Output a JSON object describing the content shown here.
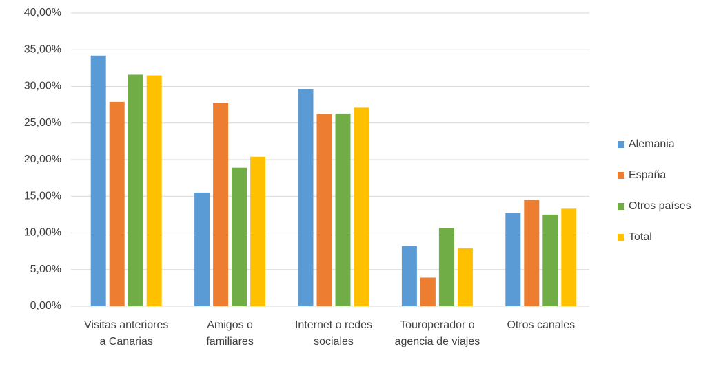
{
  "chart_data": {
    "type": "bar",
    "categories": [
      "Visitas anteriores a Canarias",
      "Amigos o familiares",
      "Internet o redes sociales",
      "Touroperador o agencia de viajes",
      "Otros canales"
    ],
    "series": [
      {
        "name": "Alemania",
        "color": "#5b9bd5",
        "values": [
          34.2,
          15.5,
          29.6,
          8.2,
          12.7
        ]
      },
      {
        "name": "España",
        "color": "#ed7d31",
        "values": [
          27.9,
          27.7,
          26.2,
          3.9,
          14.5
        ]
      },
      {
        "name": "Otros países",
        "color": "#70ad47",
        "values": [
          31.6,
          18.9,
          26.3,
          10.7,
          12.5
        ]
      },
      {
        "name": "Total",
        "color": "#ffc000",
        "values": [
          31.5,
          20.4,
          27.1,
          7.9,
          13.3
        ]
      }
    ],
    "ylim": [
      0,
      40
    ],
    "yticks": [
      {
        "value": 0,
        "label": "0,00%"
      },
      {
        "value": 5,
        "label": "5,00%"
      },
      {
        "value": 10,
        "label": "10,00%"
      },
      {
        "value": 15,
        "label": "15,00%"
      },
      {
        "value": 20,
        "label": "20,00%"
      },
      {
        "value": 25,
        "label": "25,00%"
      },
      {
        "value": 30,
        "label": "30,00%"
      },
      {
        "value": 35,
        "label": "35,00%"
      },
      {
        "value": 40,
        "label": "40,00%"
      }
    ],
    "grid": true,
    "legend": "right"
  }
}
